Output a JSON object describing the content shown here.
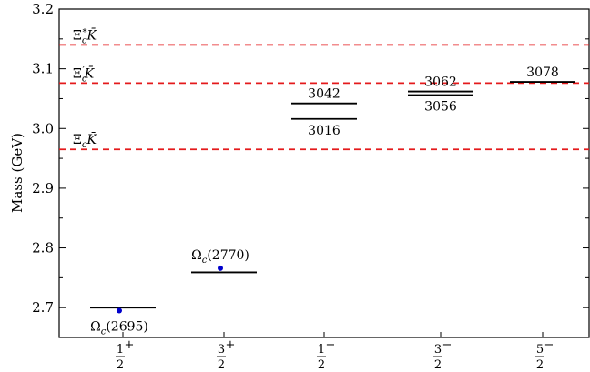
{
  "chart_data": {
    "type": "scatter",
    "ylabel": "Mass (GeV)",
    "ylim": [
      2.65,
      3.2
    ],
    "yticks": [
      "2.7",
      "2.8",
      "2.9",
      "3.0",
      "3.1",
      "3.2"
    ],
    "yticks_values": [
      2.7,
      2.8,
      2.9,
      3.0,
      3.1,
      3.2
    ],
    "x_categories": [
      {
        "num": "1",
        "sup": "+",
        "den": "2"
      },
      {
        "num": "3",
        "sup": "+",
        "den": "2"
      },
      {
        "num": "1",
        "sup": "−",
        "den": "2"
      },
      {
        "num": "3",
        "sup": "−",
        "den": "2"
      },
      {
        "num": "5",
        "sup": "−",
        "den": "2"
      }
    ],
    "grid": false,
    "thresholds": [
      {
        "base": "Ξ",
        "sub": "c",
        "sup": "*",
        "meson": "K̄",
        "value": 3.14,
        "color": "#e41a1c"
      },
      {
        "base": "Ξ",
        "sub": "c",
        "sup": "′",
        "meson": "K̄",
        "value": 3.076,
        "color": "#e41a1c"
      },
      {
        "base": "Ξ",
        "sub": "c",
        "sup": "",
        "meson": "K̄",
        "value": 2.965,
        "color": "#e41a1c"
      }
    ],
    "predicted_levels": [
      {
        "category": 0,
        "value": 2.7,
        "label": ""
      },
      {
        "category": 1,
        "value": 2.759,
        "label": ""
      },
      {
        "category": 2,
        "value": 3.042,
        "label": "3042",
        "label_pos": "above"
      },
      {
        "category": 2,
        "value": 3.016,
        "label": "3016",
        "label_pos": "below"
      },
      {
        "category": 3,
        "value": 3.062,
        "label": "3062",
        "label_pos": "above"
      },
      {
        "category": 3,
        "value": 3.056,
        "label": "3056",
        "label_pos": "below"
      },
      {
        "category": 4,
        "value": 3.078,
        "label": "3078",
        "label_pos": "above"
      }
    ],
    "experimental_points": [
      {
        "category": 0,
        "value": 2.695,
        "name": "Ω",
        "sub": "c",
        "mass": "(2695)",
        "label_pos": "below",
        "color": "#0000cc"
      },
      {
        "category": 1,
        "value": 2.766,
        "name": "Ω",
        "sub": "c",
        "mass": "(2770)",
        "label_pos": "above",
        "color": "#0000cc"
      }
    ]
  }
}
